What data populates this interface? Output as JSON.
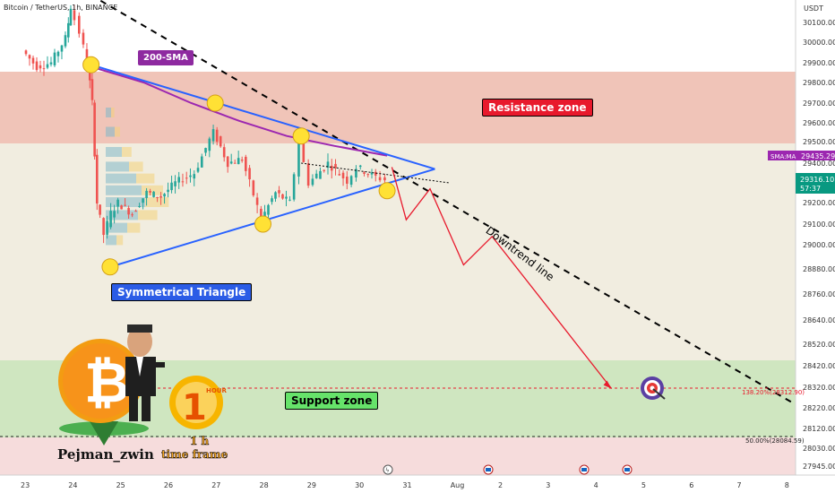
{
  "header": {
    "title": "Bitcoin / TetherUS, 1h, BINANCE",
    "currency": "USDT"
  },
  "labels": {
    "sma": "200-SMA",
    "resistance": "Resistance zone",
    "support": "Support zone",
    "triangle": "Symmetrical Triangle",
    "downtrend": "Downtrend line",
    "author": "Pejman_zwin",
    "timeframe_line1": "1 h",
    "timeframe_line2": "time frame",
    "fib_138": "138.20%(28312.90)",
    "fib_50": "50.00%(28084.59)"
  },
  "badges": {
    "sma_name": "SMA:MA",
    "sma_value": "29435.29",
    "price_value": "29316.10",
    "countdown": "57:37"
  },
  "colors": {
    "resistance_zone": "#f0c4b8",
    "support_zone": "#cfe6c0",
    "middle_zone": "#f1ede0",
    "lower_zone": "#f6dcdc",
    "up_candle": "#26a69a",
    "down_candle": "#ef5350",
    "sma_line": "#9c27b0",
    "triangle_line": "#2962ff",
    "projection": "#e8192c",
    "price_badge": "#089981"
  },
  "icons": [
    "bitcoin-logo-icon",
    "character-illustration",
    "one-hour-icon",
    "target-icon",
    "calendar-flag-icon",
    "lightning-icon"
  ],
  "chart_data": {
    "type": "line",
    "title": "Bitcoin / TetherUS, 1h, BINANCE",
    "xlabel": "",
    "ylabel": "USDT",
    "x_ticks": [
      "23",
      "24",
      "25",
      "26",
      "27",
      "28",
      "29",
      "30",
      "31",
      "Aug",
      "2",
      "3",
      "4",
      "5",
      "6",
      "7",
      "8"
    ],
    "y_ticks": [
      27945,
      28030,
      28120,
      28220,
      28320,
      28420,
      28520,
      28640,
      28760,
      28880,
      29000,
      29100,
      29200,
      29300,
      29400,
      29500,
      29600,
      29700,
      29800,
      29900,
      30000,
      30100
    ],
    "price_series": [
      {
        "x": 23.0,
        "y": 29960
      },
      {
        "x": 23.3,
        "y": 29880
      },
      {
        "x": 23.6,
        "y": 29900
      },
      {
        "x": 23.9,
        "y": 30020
      },
      {
        "x": 24.0,
        "y": 30180
      },
      {
        "x": 24.2,
        "y": 30050
      },
      {
        "x": 24.35,
        "y": 29900
      },
      {
        "x": 24.45,
        "y": 29700
      },
      {
        "x": 24.55,
        "y": 29200
      },
      {
        "x": 24.7,
        "y": 29050
      },
      {
        "x": 24.85,
        "y": 29150
      },
      {
        "x": 25.0,
        "y": 29200
      },
      {
        "x": 25.3,
        "y": 29150
      },
      {
        "x": 25.6,
        "y": 29250
      },
      {
        "x": 25.9,
        "y": 29230
      },
      {
        "x": 26.2,
        "y": 29300
      },
      {
        "x": 26.6,
        "y": 29350
      },
      {
        "x": 27.0,
        "y": 29550
      },
      {
        "x": 27.3,
        "y": 29400
      },
      {
        "x": 27.6,
        "y": 29420
      },
      {
        "x": 28.0,
        "y": 29120
      },
      {
        "x": 28.3,
        "y": 29250
      },
      {
        "x": 28.6,
        "y": 29200
      },
      {
        "x": 28.8,
        "y": 29500
      },
      {
        "x": 29.0,
        "y": 29300
      },
      {
        "x": 29.4,
        "y": 29400
      },
      {
        "x": 29.8,
        "y": 29310
      },
      {
        "x": 30.0,
        "y": 29380
      },
      {
        "x": 30.4,
        "y": 29330
      },
      {
        "x": 30.6,
        "y": 29316
      }
    ],
    "sma_200": [
      {
        "x": 24.4,
        "y": 29880
      },
      {
        "x": 25.5,
        "y": 29800
      },
      {
        "x": 26.5,
        "y": 29700
      },
      {
        "x": 27.5,
        "y": 29610
      },
      {
        "x": 28.5,
        "y": 29530
      },
      {
        "x": 29.5,
        "y": 29480
      },
      {
        "x": 30.6,
        "y": 29435
      }
    ],
    "triangle_upper": [
      {
        "x": 24.4,
        "y": 29890
      },
      {
        "x": 31.6,
        "y": 29370
      }
    ],
    "triangle_lower": [
      {
        "x": 24.8,
        "y": 28890
      },
      {
        "x": 31.6,
        "y": 29370
      }
    ],
    "downtrend_line": [
      {
        "x": 24.6,
        "y": 30210
      },
      {
        "x": 8.2,
        "y": 28230
      }
    ],
    "projection_path": [
      {
        "x": 30.7,
        "y": 29380
      },
      {
        "x": 31.0,
        "y": 29120
      },
      {
        "x": 31.5,
        "y": 29270
      },
      {
        "x": 32.2,
        "y": 28900
      },
      {
        "x": 32.8,
        "y": 29040
      },
      {
        "x": 35.3,
        "y": 28312.9
      }
    ],
    "resistance_zone": [
      29500,
      29880
    ],
    "support_zone": [
      28084.59,
      28440
    ],
    "fib_levels": [
      {
        "label": "138.20%",
        "value": 28312.9
      },
      {
        "label": "50.00%",
        "value": 28084.59
      }
    ],
    "grid": false,
    "legend": "none"
  }
}
